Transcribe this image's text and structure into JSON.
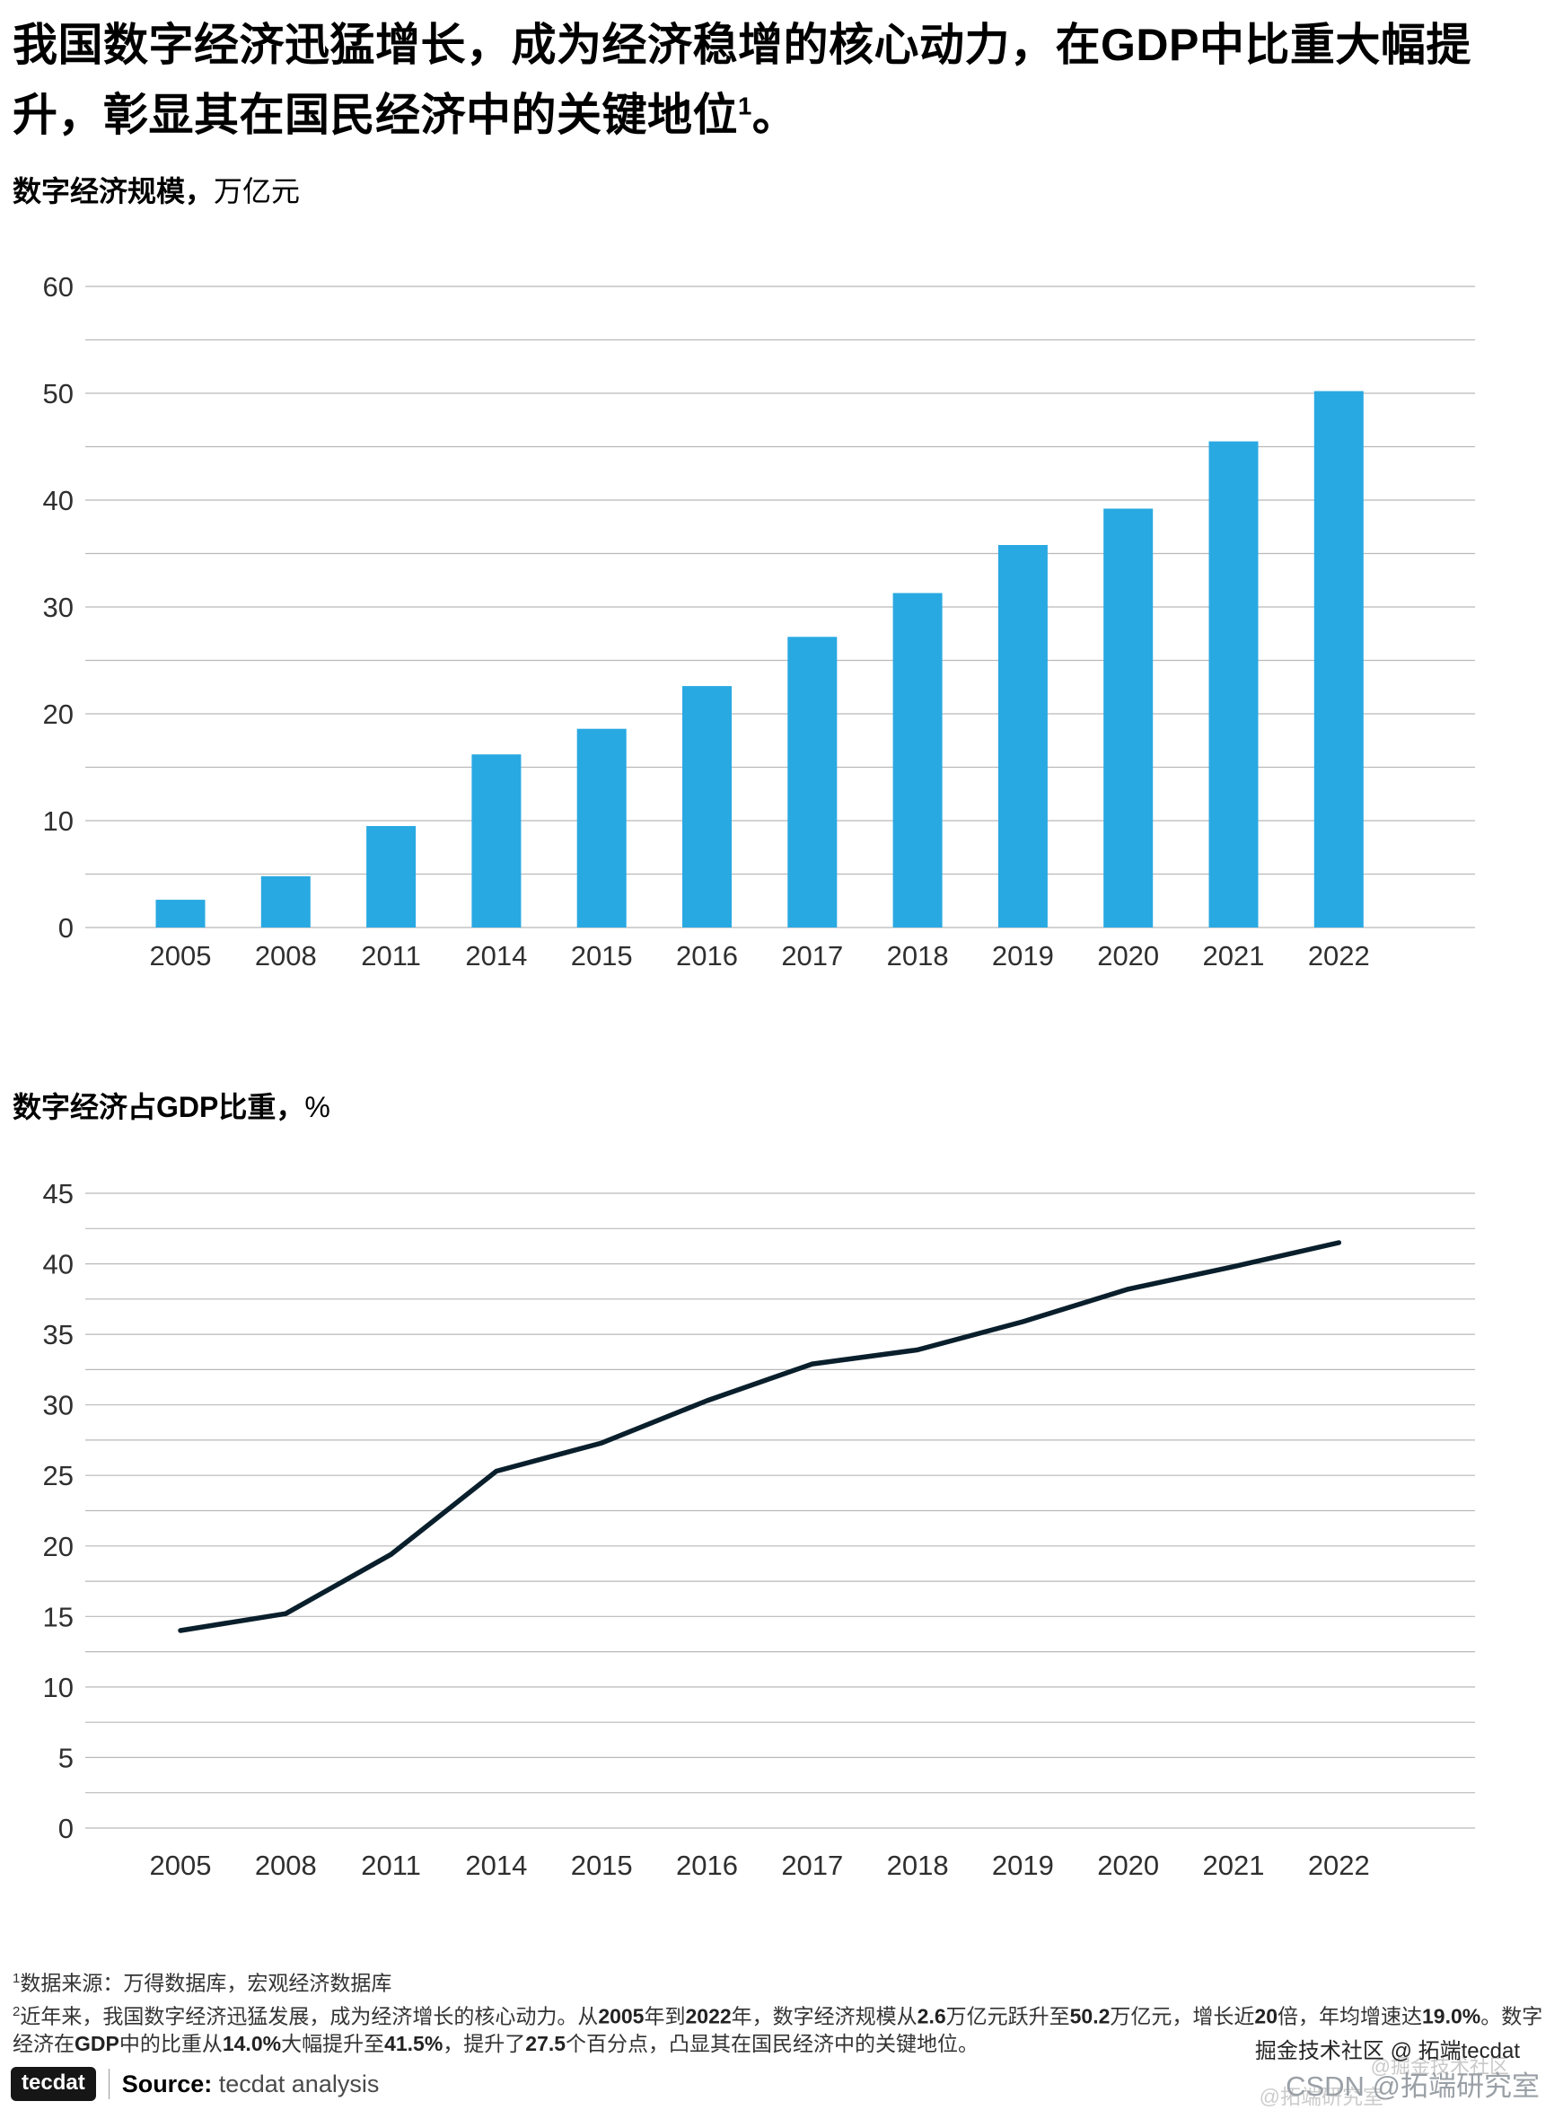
{
  "title": {
    "text": "我国数字经济迅猛增长，成为经济稳增的核心动力，在GDP中比重大幅提升，彰显其在国民经济中的关键地位",
    "footnote_ref": "1",
    "suffix": "。"
  },
  "chart_data": [
    {
      "type": "bar",
      "title": "数字经济规模，",
      "unit": "万亿元",
      "ylabel": "万亿元",
      "xlabel": "",
      "categories": [
        "2005",
        "2008",
        "2011",
        "2014",
        "2015",
        "2016",
        "2017",
        "2018",
        "2019",
        "2020",
        "2021",
        "2022"
      ],
      "values": [
        2.6,
        4.8,
        9.5,
        16.2,
        18.6,
        22.6,
        27.2,
        31.3,
        35.8,
        39.2,
        45.5,
        50.2
      ],
      "ylim": [
        0,
        60
      ],
      "yticks": [
        0,
        10,
        20,
        30,
        40,
        50,
        60
      ],
      "grid_minor_step": 5,
      "grid": true,
      "legend": "none",
      "color": "#29A9E2"
    },
    {
      "type": "line",
      "title": "数字经济占GDP比重，",
      "unit": "%",
      "ylabel": "%",
      "xlabel": "",
      "categories": [
        "2005",
        "2008",
        "2011",
        "2014",
        "2015",
        "2016",
        "2017",
        "2018",
        "2019",
        "2020",
        "2021",
        "2022"
      ],
      "values": [
        14.0,
        15.2,
        19.4,
        25.3,
        27.3,
        30.3,
        32.9,
        33.9,
        35.9,
        38.2,
        39.8,
        41.5
      ],
      "ylim": [
        0,
        45
      ],
      "yticks": [
        0,
        5,
        10,
        15,
        20,
        25,
        30,
        35,
        40,
        45
      ],
      "grid_minor_step": 2.5,
      "grid": true,
      "legend": "none",
      "color": "#0A1F2C"
    }
  ],
  "footnotes": [
    {
      "marker": "1",
      "text": "数据来源：万得数据库，宏观经济数据库"
    },
    {
      "marker": "2",
      "text": "近年来，我国数字经济迅猛发展，成为经济增长的核心动力。从2005年到2022年，数字经济规模从2.6万亿元跃升至50.2万亿元，增长近20倍，年均增速达19.0%。数字经济在GDP中的比重从14.0%大幅提升至41.5%，提升了27.5个百分点，凸显其在国民经济中的关键地位。"
    }
  ],
  "source": {
    "logo_text": "tecdat",
    "label": "Source:",
    "text": "tecdat analysis"
  },
  "watermarks": {
    "line1": "掘金技术社区 @ 拓端tecdat",
    "ghost1": "@掘金技术社区",
    "line2": "CSDN @拓端研究室",
    "ghost2": "@拓端研究室"
  },
  "colors": {
    "bar": "#29A9E2",
    "line": "#0A1F2C",
    "grid": "#B9B9B9",
    "axis_text": "#2F2F2F"
  }
}
